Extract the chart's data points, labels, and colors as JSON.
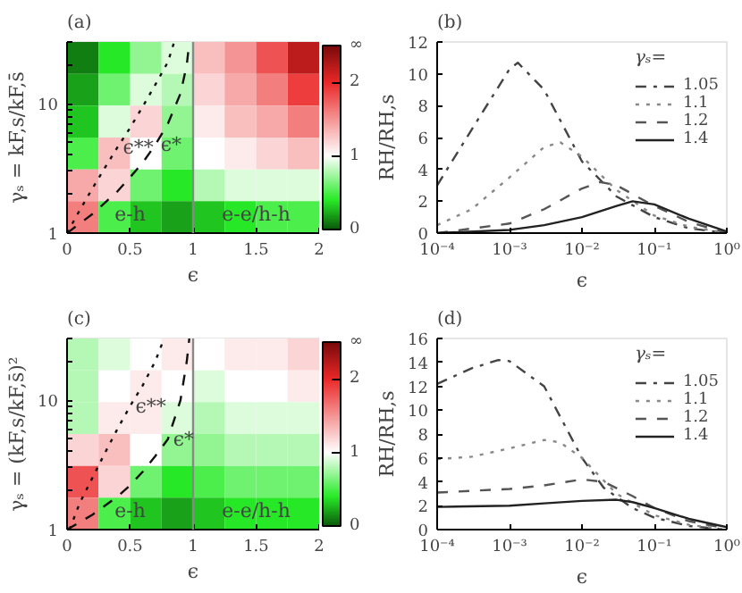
{
  "chart_data": [
    {
      "type": "heatmap",
      "title": "(a)",
      "xlabel": "ϵ",
      "ylabel": "γₛ = kF,s/kF,s̄",
      "log": "y",
      "cells": [
        [
          0.1,
          0.4,
          0.7,
          0.9,
          1.3,
          1.5,
          1.8,
          2.2
        ],
        [
          0.2,
          0.6,
          0.9,
          0.8,
          1.2,
          1.4,
          1.6,
          1.9
        ],
        [
          0.3,
          0.9,
          1.2,
          0.7,
          1.1,
          1.3,
          1.4,
          1.6
        ],
        [
          0.5,
          1.3,
          1.0,
          0.6,
          1.0,
          1.1,
          1.2,
          1.3
        ],
        [
          1.4,
          1.2,
          0.6,
          0.4,
          0.8,
          0.9,
          0.9,
          0.9
        ],
        [
          1.6,
          0.5,
          0.3,
          0.2,
          0.3,
          0.4,
          0.5,
          0.5
        ]
      ],
      "clim": [
        0,
        2.5
      ],
      "cticks": [
        0,
        1,
        2,
        {
          "value": 2.5,
          "label": "∞"
        }
      ],
      "xlim": [
        0,
        2
      ],
      "xticks": [
        0,
        0.5,
        1,
        1.5,
        2
      ],
      "ylim": [
        1,
        30
      ],
      "yticks": [
        1,
        {
          "value": 2,
          "label": null
        },
        {
          "value": 3,
          "label": null
        },
        {
          "value": 4,
          "label": null
        },
        {
          "value": 5,
          "label": null
        },
        {
          "value": 6,
          "label": null
        },
        {
          "value": 7,
          "label": null
        },
        {
          "value": 8,
          "label": null
        },
        {
          "value": 9,
          "label": null
        },
        10,
        {
          "value": 20,
          "label": null
        },
        {
          "value": 30,
          "label": null
        }
      ],
      "series": [
        {
          "type": "line",
          "line_style": "dotted",
          "color": "#111111",
          "x": [
            0,
            0.1,
            0.2,
            0.3,
            0.4,
            0.5,
            0.6,
            0.7,
            0.8,
            0.85
          ],
          "values": [
            1,
            1.5,
            2.2,
            3.2,
            4.6,
            6.5,
            9.5,
            14,
            21,
            30
          ]
        },
        {
          "type": "line",
          "line_style": "dashed",
          "color": "#111111",
          "x": [
            0,
            0.2,
            0.4,
            0.5,
            0.6,
            0.7,
            0.8,
            0.9,
            0.95,
            0.97
          ],
          "values": [
            1,
            1.4,
            2.1,
            2.7,
            3.5,
            4.8,
            7,
            12,
            20,
            30
          ]
        }
      ],
      "ref_lines": [
        {
          "axis": "x",
          "value": 1,
          "color": "#888888"
        }
      ],
      "annotations": [
        {
          "text": "ϵ**",
          "x": 0.4,
          "y": 4.6
        },
        {
          "text": "ϵ*",
          "x": 0.7,
          "y": 4.8
        },
        "e-h",
        "e-e/h-h"
      ]
    },
    {
      "type": "line",
      "title": "(b)",
      "xlabel": "ϵ",
      "ylabel": "RH/RH,s",
      "log": "x",
      "legend": "top right",
      "legend_title": "γₛ=",
      "xlim": [
        0.0001,
        1
      ],
      "xticks": [
        {
          "value": 0.0001,
          "label": "10⁻⁴"
        },
        {
          "value": 0.001,
          "label": "10⁻³"
        },
        {
          "value": 0.01,
          "label": "10⁻²"
        },
        {
          "value": 0.1,
          "label": "10⁻¹"
        },
        {
          "value": 1,
          "label": "10⁰"
        }
      ],
      "ylim": [
        0,
        12
      ],
      "yticks": [
        0,
        2,
        4,
        6,
        8,
        10,
        12
      ],
      "series": [
        {
          "name": "1.05",
          "line_style": "dashdot",
          "color": "#444444",
          "x": [
            0.0001,
            0.0003,
            0.001,
            0.0013,
            0.003,
            0.01,
            0.03,
            0.1,
            0.3,
            1
          ],
          "values": [
            3,
            6.5,
            10.3,
            10.7,
            9,
            4.5,
            2.3,
            1.0,
            0.3,
            0
          ]
        },
        {
          "name": "1.1",
          "line_style": "dotted",
          "color": "#888888",
          "x": [
            0.0001,
            0.0003,
            0.001,
            0.003,
            0.005,
            0.01,
            0.03,
            0.1,
            0.3,
            1
          ],
          "values": [
            0.5,
            1.5,
            3.5,
            5.4,
            5.7,
            4.8,
            2.7,
            1.1,
            0.4,
            0
          ]
        },
        {
          "name": "1.2",
          "line_style": "dashed",
          "color": "#555555",
          "x": [
            0.0001,
            0.001,
            0.003,
            0.01,
            0.018,
            0.03,
            0.1,
            0.3,
            1
          ],
          "values": [
            0,
            0.6,
            1.5,
            2.8,
            3.2,
            3.0,
            1.7,
            0.7,
            0
          ]
        },
        {
          "name": "1.4",
          "line_style": "solid",
          "color": "#222222",
          "x": [
            0.0001,
            0.001,
            0.003,
            0.01,
            0.03,
            0.05,
            0.1,
            0.3,
            1
          ],
          "values": [
            0,
            0.2,
            0.5,
            1.0,
            1.7,
            2.0,
            1.8,
            0.9,
            0.1
          ]
        }
      ]
    },
    {
      "type": "heatmap",
      "title": "(c)",
      "xlabel": "ϵ",
      "ylabel": "γₛ = (kF,s/kF,s̄)²",
      "log": "y",
      "cells": [
        [
          0.8,
          0.9,
          1.0,
          1.1,
          1.0,
          1.1,
          1.1,
          1.2
        ],
        [
          0.8,
          1.0,
          1.1,
          1.0,
          0.9,
          1.0,
          1.0,
          1.1
        ],
        [
          0.8,
          1.1,
          1.1,
          0.9,
          0.8,
          0.9,
          0.9,
          0.9
        ],
        [
          1.2,
          1.3,
          1.0,
          0.7,
          0.7,
          0.8,
          0.8,
          0.8
        ],
        [
          1.8,
          1.2,
          0.6,
          0.4,
          0.5,
          0.6,
          0.6,
          0.6
        ],
        [
          1.6,
          0.5,
          0.3,
          0.2,
          0.3,
          0.4,
          0.4,
          0.4
        ]
      ],
      "clim": [
        0,
        2.5
      ],
      "cticks": [
        0,
        1,
        2,
        {
          "value": 2.5,
          "label": "∞"
        }
      ],
      "xlim": [
        0,
        2
      ],
      "xticks": [
        0,
        0.5,
        1,
        1.5,
        2
      ],
      "ylim": [
        1,
        30
      ],
      "yticks": [
        1,
        {
          "value": 2,
          "label": null
        },
        {
          "value": 3,
          "label": null
        },
        {
          "value": 4,
          "label": null
        },
        {
          "value": 5,
          "label": null
        },
        {
          "value": 6,
          "label": null
        },
        {
          "value": 7,
          "label": null
        },
        {
          "value": 8,
          "label": null
        },
        {
          "value": 9,
          "label": null
        },
        10,
        {
          "value": 20,
          "label": null
        },
        {
          "value": 30,
          "label": null
        }
      ],
      "series": [
        {
          "type": "line",
          "line_style": "dotted",
          "color": "#111111",
          "x": [
            0.02,
            0.1,
            0.2,
            0.3,
            0.4,
            0.5,
            0.6,
            0.7,
            0.77
          ],
          "values": [
            1,
            1.6,
            2.5,
            3.9,
            6,
            9,
            13,
            20,
            30
          ]
        },
        {
          "type": "line",
          "line_style": "dashed",
          "color": "#111111",
          "x": [
            0,
            0.2,
            0.4,
            0.5,
            0.6,
            0.7,
            0.8,
            0.9,
            0.95,
            0.97
          ],
          "values": [
            1,
            1.3,
            1.8,
            2.2,
            2.8,
            3.7,
            5,
            10,
            20,
            30
          ]
        }
      ],
      "ref_lines": [
        {
          "axis": "x",
          "value": 1,
          "color": "#888888"
        }
      ],
      "annotations": [
        {
          "text": "ϵ**",
          "x": 0.5,
          "y": 9
        },
        {
          "text": "ϵ*",
          "x": 0.8,
          "y": 5
        },
        "e-h",
        "e-e/h-h"
      ]
    },
    {
      "type": "line",
      "title": "(d)",
      "xlabel": "ϵ",
      "ylabel": "RH/RH,s",
      "log": "x",
      "legend": "top right",
      "legend_title": "γₛ=",
      "xlim": [
        0.0001,
        1
      ],
      "xticks": [
        {
          "value": 0.0001,
          "label": "10⁻⁴"
        },
        {
          "value": 0.001,
          "label": "10⁻³"
        },
        {
          "value": 0.01,
          "label": "10⁻²"
        },
        {
          "value": 0.1,
          "label": "10⁻¹"
        },
        {
          "value": 1,
          "label": "10⁰"
        }
      ],
      "ylim": [
        0,
        16
      ],
      "yticks": [
        0,
        2,
        4,
        6,
        8,
        10,
        12,
        14,
        16
      ],
      "series": [
        {
          "name": "1.05",
          "line_style": "dashdot",
          "color": "#444444",
          "x": [
            0.0001,
            0.0003,
            0.0007,
            0.001,
            0.003,
            0.01,
            0.02,
            0.05,
            0.1,
            0.3,
            1
          ],
          "values": [
            12.2,
            13.5,
            14.2,
            14.1,
            12,
            6,
            3.5,
            1.8,
            1.0,
            0.3,
            0
          ]
        },
        {
          "name": "1.1",
          "line_style": "dotted",
          "color": "#888888",
          "x": [
            0.0001,
            0.0003,
            0.001,
            0.003,
            0.005,
            0.01,
            0.03,
            0.1,
            0.3,
            1
          ],
          "values": [
            5.9,
            6.1,
            6.8,
            7.5,
            7.3,
            6,
            3,
            1.2,
            0.4,
            0
          ]
        },
        {
          "name": "1.2",
          "line_style": "dashed",
          "color": "#555555",
          "x": [
            0.0001,
            0.001,
            0.003,
            0.01,
            0.02,
            0.05,
            0.1,
            0.3,
            1
          ],
          "values": [
            3.1,
            3.4,
            3.7,
            4.2,
            4.0,
            2.8,
            1.8,
            0.7,
            0.1
          ]
        },
        {
          "name": "1.4",
          "line_style": "solid",
          "color": "#222222",
          "x": [
            0.0001,
            0.001,
            0.003,
            0.01,
            0.03,
            0.05,
            0.1,
            0.3,
            1
          ],
          "values": [
            1.9,
            2.0,
            2.2,
            2.4,
            2.5,
            2.3,
            1.8,
            0.9,
            0.2
          ]
        }
      ]
    }
  ]
}
